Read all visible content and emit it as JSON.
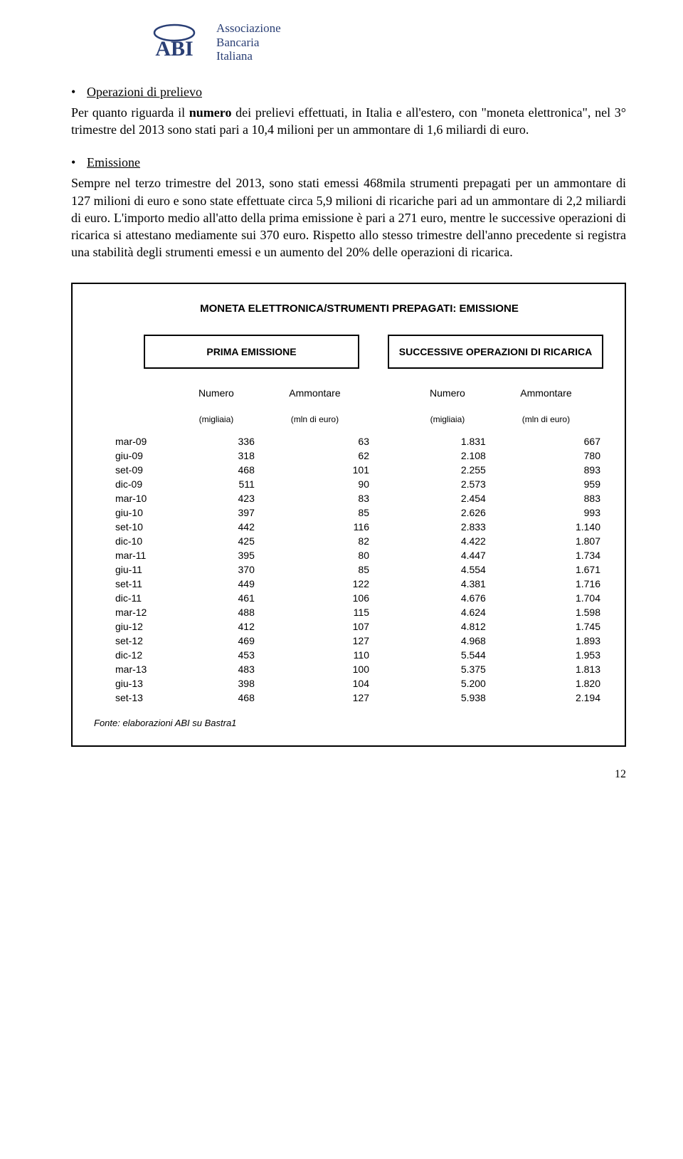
{
  "logo": {
    "acronym": "ABI",
    "lines": [
      "Associazione",
      "Bancaria",
      "Italiana"
    ],
    "color": "#2a3f75"
  },
  "section1": {
    "heading": "Operazioni di prelievo",
    "body_pre": "Per quanto riguarda il ",
    "body_bold": "numero",
    "body_post": " dei prelievi effettuati, in Italia e all'estero, con \"moneta elettronica\", nel 3° trimestre del 2013 sono stati pari a 10,4 milioni per un ammontare di 1,6 miliardi di euro."
  },
  "section2": {
    "heading": "Emissione",
    "body": "Sempre nel terzo trimestre del 2013, sono stati emessi 468mila strumenti prepagati per un ammontare di 127 milioni di euro e sono state effettuate circa 5,9 milioni di ricariche pari ad un ammontare di 2,2 miliardi di euro. L'importo medio all'atto della prima emissione è pari a 271 euro, mentre le successive operazioni di ricarica si attestano mediamente sui 370 euro. Rispetto allo stesso trimestre dell'anno precedente si registra una stabilità degli strumenti emessi e un aumento del 20% delle operazioni di ricarica."
  },
  "table": {
    "title": "MONETA ELETTRONICA/STRUMENTI PREPAGATI: EMISSIONE",
    "group1": "PRIMA EMISSIONE",
    "group2": "SUCCESSIVE OPERAZIONI DI RICARICA",
    "col_headers": {
      "numero": "Numero",
      "ammontare": "Ammontare"
    },
    "units": {
      "migliaia": "(migliaia)",
      "mln": "(mln di euro)"
    },
    "rows": [
      {
        "period": "mar-09",
        "n1": "336",
        "a1": "63",
        "n2": "1.831",
        "a2": "667"
      },
      {
        "period": "giu-09",
        "n1": "318",
        "a1": "62",
        "n2": "2.108",
        "a2": "780"
      },
      {
        "period": "set-09",
        "n1": "468",
        "a1": "101",
        "n2": "2.255",
        "a2": "893"
      },
      {
        "period": "dic-09",
        "n1": "511",
        "a1": "90",
        "n2": "2.573",
        "a2": "959"
      },
      {
        "period": "mar-10",
        "n1": "423",
        "a1": "83",
        "n2": "2.454",
        "a2": "883"
      },
      {
        "period": "giu-10",
        "n1": "397",
        "a1": "85",
        "n2": "2.626",
        "a2": "993"
      },
      {
        "period": "set-10",
        "n1": "442",
        "a1": "116",
        "n2": "2.833",
        "a2": "1.140"
      },
      {
        "period": "dic-10",
        "n1": "425",
        "a1": "82",
        "n2": "4.422",
        "a2": "1.807"
      },
      {
        "period": "mar-11",
        "n1": "395",
        "a1": "80",
        "n2": "4.447",
        "a2": "1.734"
      },
      {
        "period": "giu-11",
        "n1": "370",
        "a1": "85",
        "n2": "4.554",
        "a2": "1.671"
      },
      {
        "period": "set-11",
        "n1": "449",
        "a1": "122",
        "n2": "4.381",
        "a2": "1.716"
      },
      {
        "period": "dic-11",
        "n1": "461",
        "a1": "106",
        "n2": "4.676",
        "a2": "1.704"
      },
      {
        "period": "mar-12",
        "n1": "488",
        "a1": "115",
        "n2": "4.624",
        "a2": "1.598"
      },
      {
        "period": "giu-12",
        "n1": "412",
        "a1": "107",
        "n2": "4.812",
        "a2": "1.745"
      },
      {
        "period": "set-12",
        "n1": "469",
        "a1": "127",
        "n2": "4.968",
        "a2": "1.893"
      },
      {
        "period": "dic-12",
        "n1": "453",
        "a1": "110",
        "n2": "5.544",
        "a2": "1.953"
      },
      {
        "period": "mar-13",
        "n1": "483",
        "a1": "100",
        "n2": "5.375",
        "a2": "1.813"
      },
      {
        "period": "giu-13",
        "n1": "398",
        "a1": "104",
        "n2": "5.200",
        "a2": "1.820"
      },
      {
        "period": "set-13",
        "n1": "468",
        "a1": "127",
        "n2": "5.938",
        "a2": "2.194"
      }
    ],
    "source": "Fonte: elaborazioni ABI su Bastra1"
  },
  "page_number": "12"
}
